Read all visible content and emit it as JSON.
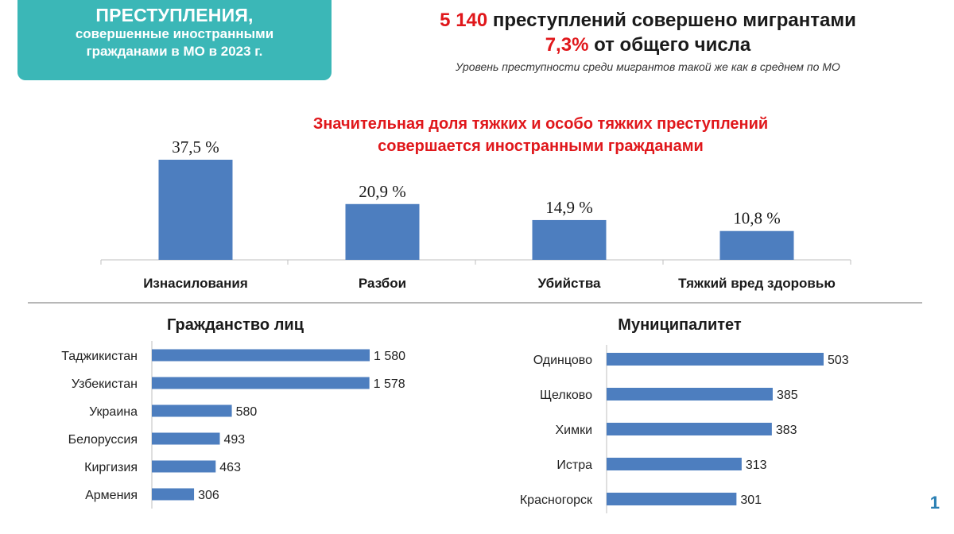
{
  "header": {
    "title": "ПРЕСТУПЛЕНИЯ,",
    "subtitle_line1": "совершенные иностранными",
    "subtitle_line2": "гражданами в МО в 2023 г."
  },
  "headline": {
    "count": "5 140",
    "count_text": " преступлений совершено мигрантами",
    "share": "7,3%",
    "share_text": " от общего числа",
    "note": "Уровень преступности среди мигрантов такой же как в среднем по МО"
  },
  "emphasis": {
    "line1": "Значительная доля тяжких и особо тяжких преступлений",
    "line2": "совершается иностранными гражданами"
  },
  "colors": {
    "bar": "#4d7ebf",
    "accent": "#3bb7b7",
    "highlight": "#e0171b"
  },
  "chart_data": [
    {
      "type": "bar",
      "title": "",
      "categories": [
        "Изнасилования",
        "Разбои",
        "Убийства",
        "Тяжкий вред здоровью"
      ],
      "values": [
        37.5,
        20.9,
        14.9,
        10.8
      ],
      "value_labels": [
        "37,5 %",
        "20,9 %",
        "14,9 %",
        "10,8 %"
      ],
      "ylim": [
        0,
        37.5
      ]
    },
    {
      "type": "bar",
      "orientation": "horizontal",
      "title": "Гражданство лиц",
      "categories": [
        "Таджикистан",
        "Узбекистан",
        "Украина",
        "Белоруссия",
        "Киргизия",
        "Армения"
      ],
      "values": [
        1580,
        1578,
        580,
        493,
        463,
        306
      ],
      "value_labels": [
        "1 580",
        "1 578",
        "580",
        "493",
        "463",
        "306"
      ]
    },
    {
      "type": "bar",
      "orientation": "horizontal",
      "title": "Муниципалитет",
      "categories": [
        "Одинцово",
        "Щелково",
        "Химки",
        "Истра",
        "Красногорск"
      ],
      "values": [
        503,
        385,
        383,
        313,
        301
      ],
      "value_labels": [
        "503",
        "385",
        "383",
        "313",
        "301"
      ]
    }
  ],
  "page_number": "1"
}
